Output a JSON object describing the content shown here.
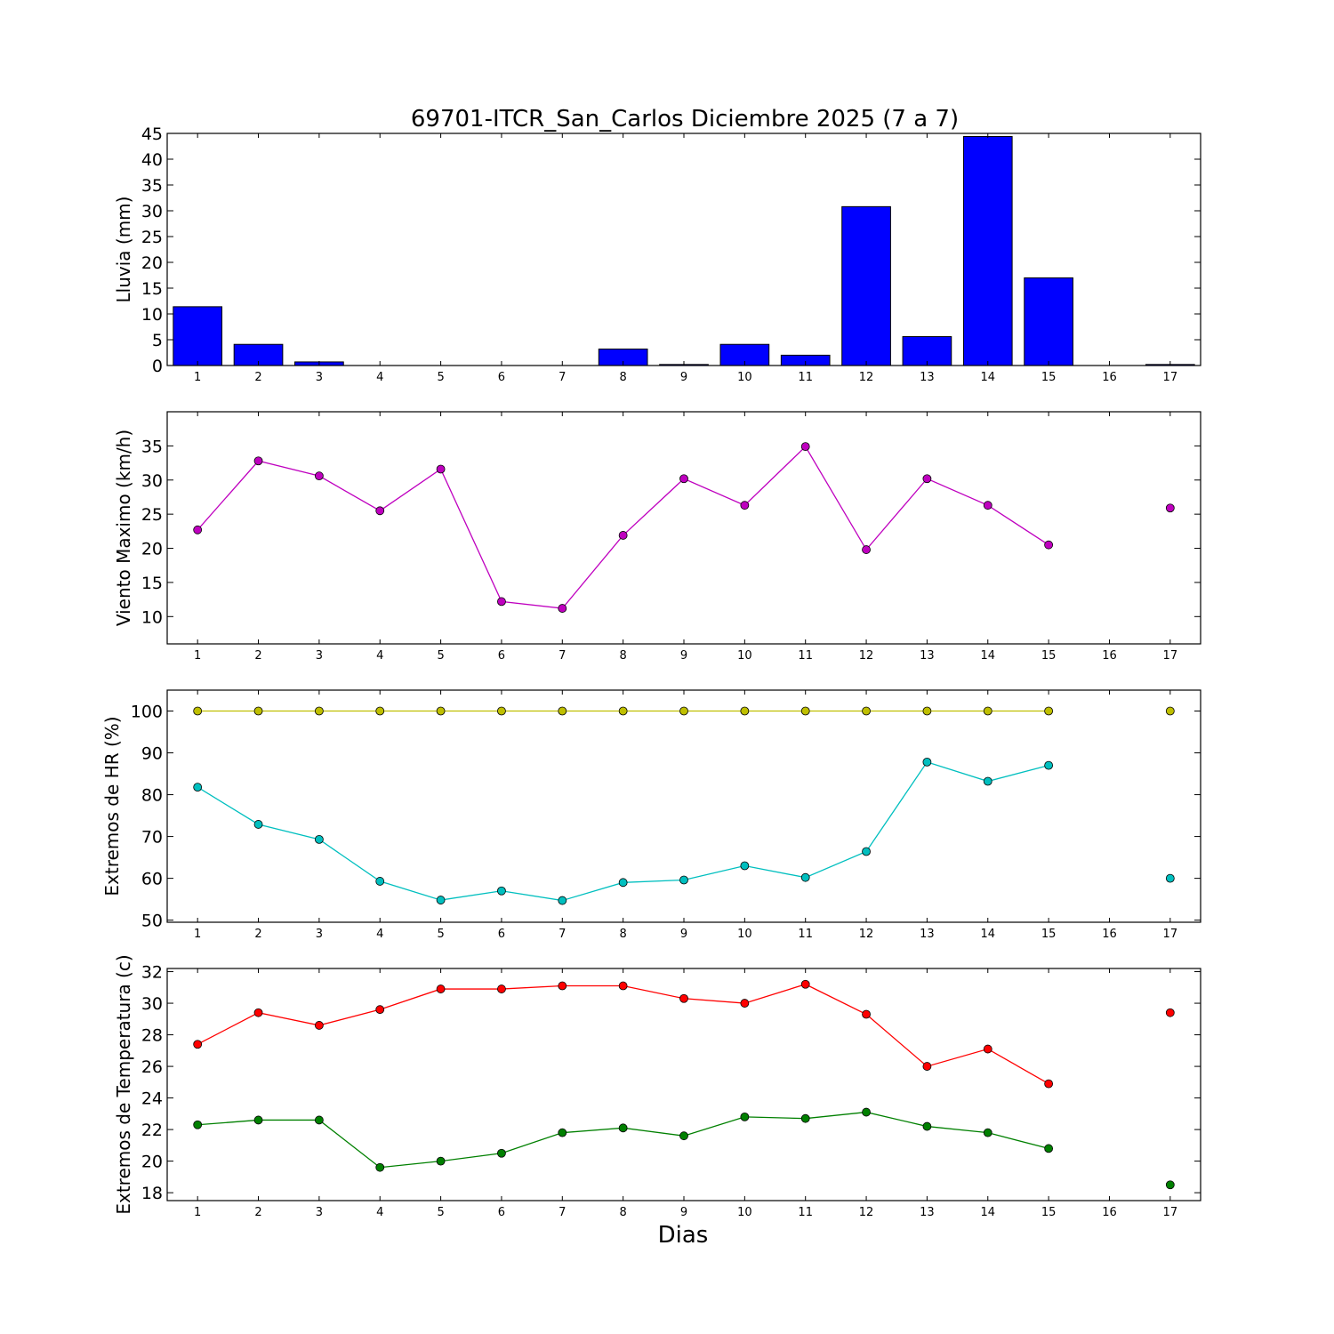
{
  "chart_data": [
    {
      "type": "bar",
      "title": "69701-ITCR_San_Carlos Diciembre 2025  (7 a 7)",
      "ylabel": "Lluvia (mm)",
      "xlabel": "",
      "ylim": [
        0,
        45
      ],
      "yticks": [
        0,
        5,
        10,
        15,
        20,
        25,
        30,
        35,
        40,
        45
      ],
      "xticks": [
        1,
        2,
        3,
        4,
        5,
        6,
        7,
        8,
        9,
        10,
        11,
        12,
        13,
        14,
        15,
        16,
        17
      ],
      "x": [
        1,
        2,
        3,
        4,
        5,
        6,
        7,
        8,
        9,
        10,
        11,
        12,
        13,
        14,
        15,
        16,
        17
      ],
      "series": [
        {
          "color": "#0000ff",
          "values": [
            11.4,
            4.1,
            0.7,
            0,
            0,
            0,
            0,
            3.2,
            0.2,
            4.1,
            2.0,
            30.8,
            5.6,
            44.4,
            17.0,
            null,
            0.2
          ]
        }
      ]
    },
    {
      "type": "line",
      "ylabel": "Viento Maximo (km/h)",
      "xlabel": "",
      "ylim": [
        6,
        40
      ],
      "yticks": [
        10,
        15,
        20,
        25,
        30,
        35
      ],
      "xticks": [
        1,
        2,
        3,
        4,
        5,
        6,
        7,
        8,
        9,
        10,
        11,
        12,
        13,
        14,
        15,
        16,
        17
      ],
      "x": [
        1,
        2,
        3,
        4,
        5,
        6,
        7,
        8,
        9,
        10,
        11,
        12,
        13,
        14,
        15,
        16,
        17
      ],
      "series": [
        {
          "color": "#bf00bf",
          "values": [
            22.7,
            32.8,
            30.6,
            25.5,
            31.6,
            12.2,
            11.2,
            21.9,
            30.2,
            26.3,
            34.9,
            19.8,
            30.2,
            26.3,
            20.5,
            null,
            25.9
          ]
        }
      ]
    },
    {
      "type": "line",
      "ylabel": "Extremos de HR (%)",
      "xlabel": "",
      "ylim": [
        49.5,
        105
      ],
      "yticks": [
        50,
        60,
        70,
        80,
        90,
        100
      ],
      "xticks": [
        1,
        2,
        3,
        4,
        5,
        6,
        7,
        8,
        9,
        10,
        11,
        12,
        13,
        14,
        15,
        16,
        17
      ],
      "x": [
        1,
        2,
        3,
        4,
        5,
        6,
        7,
        8,
        9,
        10,
        11,
        12,
        13,
        14,
        15,
        16,
        17
      ],
      "series": [
        {
          "color": "#bfbf00",
          "values": [
            100,
            100,
            100,
            100,
            100,
            100,
            100,
            100,
            100,
            100,
            100,
            100,
            100,
            100,
            100,
            null,
            100
          ]
        },
        {
          "color": "#00bfbf",
          "values": [
            81.8,
            72.9,
            69.3,
            59.3,
            54.8,
            57.0,
            54.7,
            59.0,
            59.6,
            63.0,
            60.2,
            66.4,
            87.8,
            83.2,
            87.0,
            null,
            60.0
          ]
        }
      ]
    },
    {
      "type": "line",
      "ylabel": "Extremos de Temperatura (c)",
      "xlabel": "Dias",
      "ylim": [
        17.5,
        32.2
      ],
      "yticks": [
        18,
        20,
        22,
        24,
        26,
        28,
        30,
        32
      ],
      "xticks": [
        1,
        2,
        3,
        4,
        5,
        6,
        7,
        8,
        9,
        10,
        11,
        12,
        13,
        14,
        15,
        16,
        17
      ],
      "x": [
        1,
        2,
        3,
        4,
        5,
        6,
        7,
        8,
        9,
        10,
        11,
        12,
        13,
        14,
        15,
        16,
        17
      ],
      "series": [
        {
          "color": "#ff0000",
          "values": [
            27.4,
            29.4,
            28.6,
            29.6,
            30.9,
            30.9,
            31.1,
            31.1,
            30.3,
            30.0,
            31.2,
            29.3,
            26.0,
            27.1,
            24.9,
            null,
            29.4
          ]
        },
        {
          "color": "#008000",
          "values": [
            22.3,
            22.6,
            22.6,
            19.6,
            20.0,
            20.5,
            21.8,
            22.1,
            21.6,
            22.8,
            22.7,
            23.1,
            22.2,
            21.8,
            20.8,
            null,
            18.5
          ]
        }
      ]
    }
  ]
}
